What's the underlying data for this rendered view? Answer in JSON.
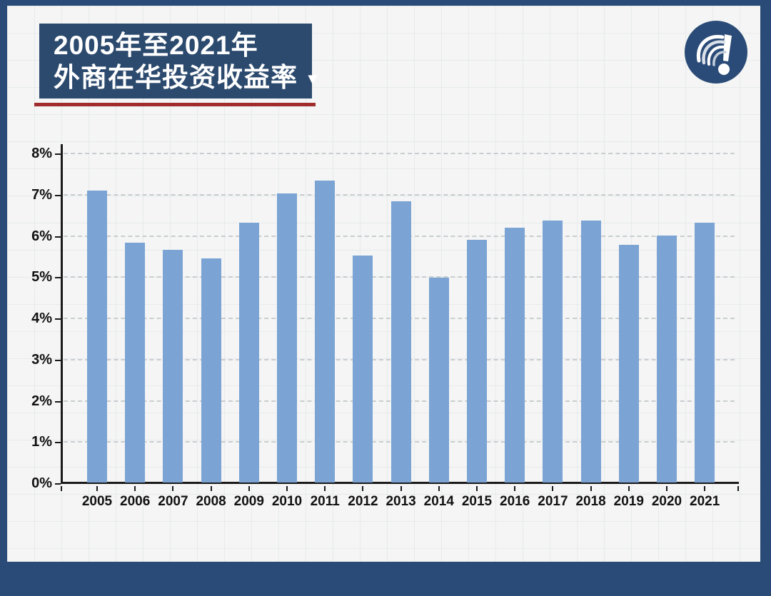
{
  "header": {
    "title_line1": "2005年至2021年",
    "title_line2": "外商在华投资收益率",
    "dropdown_arrow": "▼"
  },
  "logo": {
    "name": "question-exclamation-mark-logo"
  },
  "colors": {
    "frame_navy": "#2A4B77",
    "title_box_navy": "#2C4A6E",
    "red_accent": "#A02C2E",
    "bar_blue": "#7BA3D4",
    "axis_black": "#1A1A1A",
    "gridline_gray": "#C9CDD1",
    "canvas_background": "#F4F5F4"
  },
  "chart_data": {
    "type": "bar",
    "title": "2005年至2021年外商在华投资收益率",
    "xlabel": "",
    "ylabel": "",
    "categories": [
      "2005",
      "2006",
      "2007",
      "2008",
      "2009",
      "2010",
      "2011",
      "2012",
      "2013",
      "2014",
      "2015",
      "2016",
      "2017",
      "2018",
      "2019",
      "2020",
      "2021"
    ],
    "values": [
      7.08,
      5.82,
      5.64,
      5.44,
      6.31,
      7.01,
      7.33,
      5.51,
      6.82,
      4.97,
      5.88,
      6.18,
      6.36,
      6.36,
      5.77,
      6.0,
      6.3
    ],
    "ylim": [
      0,
      8
    ],
    "ytick_labels": [
      "0%",
      "1%",
      "2%",
      "3%",
      "4%",
      "5%",
      "6%",
      "7%",
      "8%"
    ],
    "grid": true,
    "gridline_style": "dashed",
    "legend": "none",
    "bar_color": "#7BA3D4"
  }
}
